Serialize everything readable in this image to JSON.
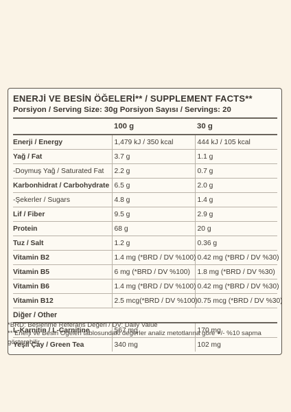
{
  "panel": {
    "title": "ENERJİ VE BESİN ÖĞELERİ** / SUPPLEMENT FACTS**",
    "subtitle": "Porsiyon / Serving Size: 30g Porsiyon Sayısı / Servings: 20"
  },
  "table": {
    "headers": [
      "",
      "100 g",
      "30 g"
    ],
    "rows": [
      {
        "name": "Enerji / Energy",
        "v100": "1,479 kJ / 350 kcal",
        "v30": "444 kJ / 105 kcal",
        "bold": true
      },
      {
        "name": "Yağ / Fat",
        "v100": "3.7 g",
        "v30": "1.1 g",
        "bold": true
      },
      {
        "name": "-Doymuş Yağ / Saturated Fat",
        "v100": "2.2 g",
        "v30": "0.7 g",
        "bold": false
      },
      {
        "name": "Karbonhidrat / Carbohydrate",
        "v100": "6.5 g",
        "v30": "2.0 g",
        "bold": true
      },
      {
        "name": "-Şekerler / Sugars",
        "v100": "4.8 g",
        "v30": "1.4 g",
        "bold": false
      },
      {
        "name": "Lif / Fiber",
        "v100": "9.5 g",
        "v30": "2.9 g",
        "bold": true
      },
      {
        "name": "Protein",
        "v100": "68  g",
        "v30": "20  g",
        "bold": true
      },
      {
        "name": "Tuz / Salt",
        "v100": "1.2 g",
        "v30": "0.36 g",
        "bold": true
      },
      {
        "name": "Vitamin B2",
        "v100": "1.4 mg (*BRD / DV %100)",
        "v30": "0.42 mg (*BRD / DV %30)",
        "bold": true
      },
      {
        "name": "Vitamin B5",
        "v100": "6 mg (*BRD / DV %100)",
        "v30": "1.8 mg (*BRD / DV %30)",
        "bold": true
      },
      {
        "name": "Vitamin B6",
        "v100": "1.4 mg (*BRD / DV %100)",
        "v30": "0.42 mg (*BRD / DV %30)",
        "bold": true
      },
      {
        "name": "Vitamin B12",
        "v100": "2.5 mcg(*BRD / DV %100)",
        "v30": "0.75 mcg (*BRD / DV %30)",
        "bold": true
      }
    ],
    "section_label": "Diğer / Other",
    "other_rows": [
      {
        "name": "L-Karnitin / L-Carnitine",
        "v100": "567 mg",
        "v30": "170 mg"
      },
      {
        "name": "Yeşil Çay / Green Tea",
        "v100": "340 mg",
        "v30": "102 mg"
      }
    ]
  },
  "footnotes": {
    "line1": "*BRD: Beslenme Referans Değeri / DV: Daily Value",
    "line2": "** Enerji ve Besin Ögeleri tablosundaki değerler analiz metotlarına göre +/- %10 sapma gösterebilir."
  },
  "colors": {
    "background": "#faf3e6",
    "panel": "#fdfaf3",
    "text": "#3f3a34",
    "rule": "#6a635b"
  }
}
